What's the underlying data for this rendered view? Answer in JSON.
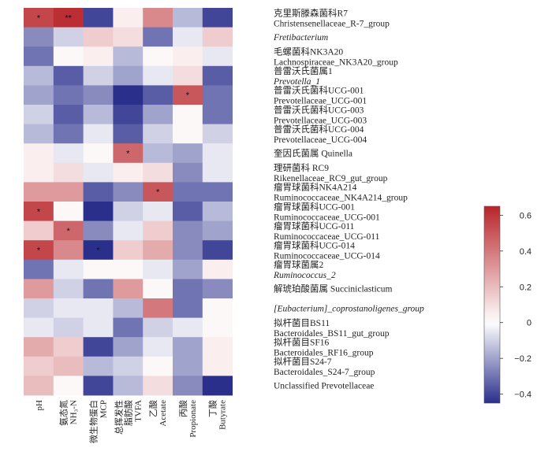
{
  "chart_data": {
    "type": "heatmap",
    "columns": [
      {
        "label_lines": [
          "pH"
        ]
      },
      {
        "label_lines": [
          "氨态氮",
          "NH₃-N"
        ]
      },
      {
        "label_lines": [
          "微生物蛋白",
          "MCP"
        ]
      },
      {
        "label_lines": [
          "总挥发性",
          "脂肪酸",
          "TVFA"
        ]
      },
      {
        "label_lines": [
          "乙酸",
          "Acetate"
        ]
      },
      {
        "label_lines": [
          "丙酸",
          "Propionate"
        ]
      },
      {
        "label_lines": [
          "丁酸",
          "Butyrate"
        ]
      }
    ],
    "rows": [
      {
        "label_lines": [
          "克里斯滕森菌科R7",
          "Christensenellaceae_R-7_group"
        ],
        "italic": [
          false,
          false
        ],
        "values": [
          0.55,
          0.62,
          -0.4,
          0.05,
          0.35,
          -0.15,
          -0.4
        ],
        "stars": [
          "*",
          "**",
          "",
          "",
          "",
          "",
          ""
        ]
      },
      {
        "label_lines": [
          "Fretibacterium"
        ],
        "italic": [
          true
        ],
        "values": [
          -0.25,
          -0.1,
          0.15,
          0.1,
          -0.3,
          -0.05,
          0.15
        ],
        "stars": [
          "",
          "",
          "",
          "",
          "",
          "",
          ""
        ]
      },
      {
        "label_lines": [
          "毛螺菌科NK3A20",
          "Lachnospiraceae_NK3A20_group"
        ],
        "italic": [
          false,
          false
        ],
        "values": [
          -0.3,
          0.02,
          0.05,
          -0.15,
          0.02,
          0.05,
          -0.05
        ],
        "stars": [
          "",
          "",
          "",
          "",
          "",
          "",
          ""
        ]
      },
      {
        "label_lines": [
          "普雷沃氏菌属1",
          "Prevotella_1"
        ],
        "italic": [
          false,
          true
        ],
        "values": [
          -0.15,
          -0.35,
          -0.1,
          -0.2,
          -0.05,
          0.1,
          -0.35
        ],
        "stars": [
          "",
          "",
          "",
          "",
          "",
          "",
          ""
        ]
      },
      {
        "label_lines": [
          "普雷沃氏菌科UCG-001",
          "Prevotellaceae_UCG-001"
        ],
        "italic": [
          false,
          false
        ],
        "values": [
          -0.2,
          -0.3,
          -0.25,
          -0.45,
          -0.35,
          0.5,
          -0.3
        ],
        "stars": [
          "",
          "",
          "",
          "",
          "",
          "*",
          ""
        ]
      },
      {
        "label_lines": [
          "普雷沃氏菌科UCG-003",
          "Prevotellaceae_UCG-003"
        ],
        "italic": [
          false,
          false
        ],
        "values": [
          -0.1,
          -0.35,
          -0.15,
          -0.4,
          -0.2,
          0.02,
          -0.3
        ],
        "stars": [
          "",
          "",
          "",
          "",
          "",
          "",
          ""
        ]
      },
      {
        "label_lines": [
          "普雷沃氏菌科UCG-004",
          "Prevotellaceae_UCG-004"
        ],
        "italic": [
          false,
          false
        ],
        "values": [
          -0.15,
          -0.3,
          -0.05,
          -0.35,
          -0.1,
          0.02,
          -0.1
        ],
        "stars": [
          "",
          "",
          "",
          "",
          "",
          "",
          ""
        ]
      },
      {
        "label_lines": [
          "奎因氏菌属 Quinella"
        ],
        "italic": [
          false
        ],
        "values": [
          0.05,
          -0.05,
          0.02,
          0.45,
          -0.15,
          -0.2,
          -0.05
        ],
        "stars": [
          "",
          "",
          "",
          "*",
          "",
          "",
          ""
        ]
      },
      {
        "label_lines": [
          "理研菌科 RC9",
          "Rikenellaceae_RC9_gut_group"
        ],
        "italic": [
          false,
          false
        ],
        "values": [
          0.05,
          0.1,
          -0.05,
          0.05,
          0.1,
          -0.25,
          -0.05
        ],
        "stars": [
          "",
          "",
          "",
          "",
          "",
          "",
          ""
        ]
      },
      {
        "label_lines": [
          "瘤胃球菌科NK4A214",
          "Ruminococcaceae_NK4A214_group"
        ],
        "italic": [
          false,
          false
        ],
        "values": [
          0.3,
          0.3,
          -0.35,
          -0.25,
          0.5,
          -0.3,
          -0.3
        ],
        "stars": [
          "",
          "",
          "",
          "",
          "*",
          "",
          ""
        ]
      },
      {
        "label_lines": [
          "瘤胃球菌科UCG-001",
          "Ruminococcaceae_UCG-001"
        ],
        "italic": [
          false,
          false
        ],
        "values": [
          0.55,
          0.02,
          -0.45,
          -0.1,
          -0.05,
          -0.35,
          -0.15
        ],
        "stars": [
          "*",
          "",
          "",
          "",
          "",
          "",
          ""
        ]
      },
      {
        "label_lines": [
          "瘤胃球菌科UCG-011",
          "Ruminococcaceae_UCG-011"
        ],
        "italic": [
          false,
          false
        ],
        "values": [
          0.15,
          0.45,
          -0.25,
          -0.05,
          0.15,
          -0.25,
          -0.2
        ],
        "stars": [
          "",
          "*",
          "",
          "",
          "",
          "",
          ""
        ]
      },
      {
        "label_lines": [
          "瘤胃球菌科UCG-014",
          "Ruminococcaceae_UCG-014"
        ],
        "italic": [
          false,
          false
        ],
        "values": [
          0.55,
          0.35,
          -0.45,
          0.15,
          0.25,
          -0.25,
          -0.4
        ],
        "stars": [
          "*",
          "",
          "*",
          "",
          "",
          "",
          ""
        ]
      },
      {
        "label_lines": [
          "瘤胃球菌属2",
          "Ruminococcus_2"
        ],
        "italic": [
          false,
          true
        ],
        "values": [
          -0.3,
          -0.05,
          0.02,
          0.02,
          -0.05,
          -0.2,
          0.05
        ],
        "stars": [
          "",
          "",
          "",
          "",
          "",
          "",
          ""
        ]
      },
      {
        "label_lines": [
          "解琥珀酸菌属 Succiniclasticum"
        ],
        "italic": [
          false
        ],
        "values": [
          0.3,
          -0.1,
          -0.3,
          0.3,
          0.02,
          -0.3,
          -0.25
        ],
        "stars": [
          "",
          "",
          "",
          "",
          "",
          "",
          ""
        ]
      },
      {
        "label_lines": [
          "[Eubacterium]_coprostanoligenes_group"
        ],
        "italic": [
          true
        ],
        "values": [
          -0.1,
          -0.05,
          -0.05,
          -0.15,
          0.4,
          -0.3,
          0.02
        ],
        "stars": [
          "",
          "",
          "",
          "",
          "",
          "",
          ""
        ]
      },
      {
        "label_lines": [
          "拟杆菌目BS11",
          "Bacteroidales_BS11_gut_group"
        ],
        "italic": [
          false,
          false
        ],
        "values": [
          -0.05,
          -0.1,
          -0.05,
          -0.3,
          -0.1,
          -0.05,
          0.02
        ],
        "stars": [
          "",
          "",
          "",
          "",
          "",
          "",
          ""
        ]
      },
      {
        "label_lines": [
          "拟杆菌目SF16",
          "Bacteroidales_RF16_group"
        ],
        "italic": [
          false,
          false
        ],
        "values": [
          0.25,
          0.15,
          -0.4,
          -0.2,
          -0.05,
          -0.2,
          0.05
        ],
        "stars": [
          "",
          "",
          "",
          "",
          "",
          "",
          ""
        ]
      },
      {
        "label_lines": [
          "拟杆菌目S24-7",
          "Bacteroidales_S24-7_group"
        ],
        "italic": [
          false,
          false
        ],
        "values": [
          0.15,
          0.2,
          -0.15,
          -0.1,
          0.02,
          -0.2,
          0.05
        ],
        "stars": [
          "",
          "",
          "",
          "",
          "",
          "",
          ""
        ]
      },
      {
        "label_lines": [
          "Unclassified Prevotellaceae"
        ],
        "italic": [
          false
        ],
        "values": [
          0.2,
          0.02,
          -0.4,
          -0.15,
          0.1,
          -0.25,
          -0.45
        ],
        "stars": [
          "",
          "",
          "",
          "",
          "",
          "",
          ""
        ]
      }
    ],
    "colorbar": {
      "min": -0.45,
      "max": 0.65,
      "ticks": [
        -0.4,
        -0.2,
        0,
        0.2,
        0.4,
        0.6
      ],
      "tick_labels": [
        "−0.4",
        "−0.2",
        "0",
        "0.2",
        "0.4",
        "0.6"
      ]
    },
    "colors": {
      "low": "#2a2f8c",
      "mid": "#ffffff",
      "high": "#b8242a"
    }
  }
}
